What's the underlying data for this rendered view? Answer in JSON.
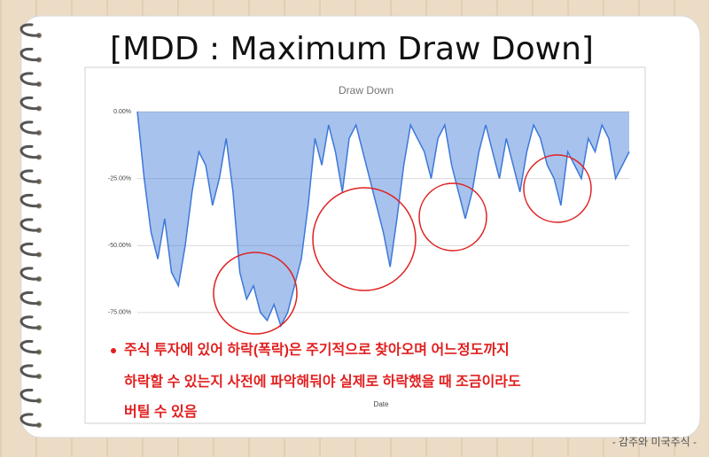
{
  "slide": {
    "title": "[MDD : Maximum Draw Down]",
    "bullet": [
      "주식 투자에 있어 하락(폭락)은 주기적으로 찾아오며 어느정도까지",
      "하락할 수 있는지 사전에 파악해둬야 실제로 하락했을 때 조금이라도",
      "버틸 수 있음"
    ],
    "footer": "- 감주와 미국주식 -"
  },
  "chart_data": {
    "type": "area",
    "title": "Draw Down",
    "x_label": "Date",
    "color": "#3c78d8",
    "values": [
      0,
      -25,
      -45,
      -55,
      -40,
      -60,
      -65,
      -50,
      -30,
      -15,
      -20,
      -35,
      -25,
      -10,
      -30,
      -60,
      -70,
      -65,
      -75,
      -78,
      -72,
      -80,
      -75,
      -65,
      -55,
      -35,
      -10,
      -20,
      -5,
      -15,
      -30,
      -10,
      -5,
      -15,
      -25,
      -35,
      -45,
      -58,
      -40,
      -20,
      -5,
      -10,
      -15,
      -25,
      -10,
      -5,
      -20,
      -30,
      -40,
      -30,
      -15,
      -5,
      -15,
      -25,
      -10,
      -20,
      -30,
      -15,
      -5,
      -10,
      -20,
      -25,
      -35,
      -15,
      -20,
      -25,
      -10,
      -15,
      -5,
      -10,
      -25,
      -20,
      -15
    ],
    "ylim": [
      -80,
      0
    ],
    "yticks": [
      {
        "value": 0,
        "label": "0.00%"
      },
      {
        "value": -25,
        "label": "-25.00%"
      },
      {
        "value": -50,
        "label": "-50.00%"
      },
      {
        "value": -75,
        "label": "-75.00%"
      }
    ],
    "grid": true
  }
}
